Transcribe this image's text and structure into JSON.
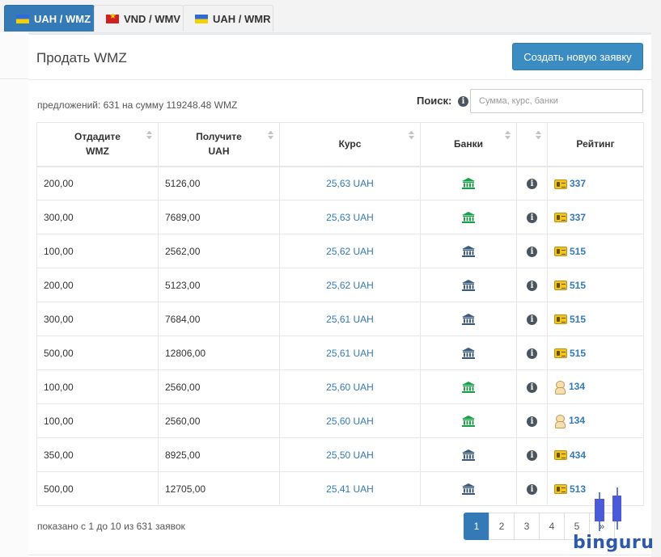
{
  "tabs": [
    {
      "label": "UAH / WMZ",
      "flag": "ua",
      "active": true
    },
    {
      "label": "VND / WMV",
      "flag": "vn",
      "active": false
    },
    {
      "label": "UAH / WMR",
      "flag": "ua",
      "active": false
    }
  ],
  "panel": {
    "title": "Продать WMZ",
    "create_button": "Создать новую заявку",
    "summary": "предложений: 631 на сумму 119248.48 WMZ",
    "search_label": "Поиск:",
    "search_placeholder": "Сумма, курс, банки",
    "search_value": ""
  },
  "table": {
    "headers": {
      "give_line1": "Отдадите",
      "give_line2": "WMZ",
      "receive_line1": "Получите",
      "receive_line2": "UAH",
      "rate": "Курс",
      "banks": "Банки",
      "rating": "Рейтинг"
    },
    "rows": [
      {
        "give": "200,00",
        "receive": "5126,00",
        "rate": "25,63 UAH",
        "bank_color": "#1e9e4a",
        "badge": "gold",
        "rating": "337"
      },
      {
        "give": "300,00",
        "receive": "7689,00",
        "rate": "25,63 UAH",
        "bank_color": "#1e9e4a",
        "badge": "gold",
        "rating": "337"
      },
      {
        "give": "100,00",
        "receive": "2562,00",
        "rate": "25,62 UAH",
        "bank_color": "#3c5a7a",
        "badge": "gold",
        "rating": "515"
      },
      {
        "give": "200,00",
        "receive": "5123,00",
        "rate": "25,62 UAH",
        "bank_color": "#3c5a7a",
        "badge": "gold",
        "rating": "515"
      },
      {
        "give": "300,00",
        "receive": "7684,00",
        "rate": "25,61 UAH",
        "bank_color": "#3c5a7a",
        "badge": "gold",
        "rating": "515"
      },
      {
        "give": "500,00",
        "receive": "12806,00",
        "rate": "25,61 UAH",
        "bank_color": "#3c5a7a",
        "badge": "gold",
        "rating": "515"
      },
      {
        "give": "100,00",
        "receive": "2560,00",
        "rate": "25,60 UAH",
        "bank_color": "#1e9e4a",
        "badge": "person",
        "rating": "134"
      },
      {
        "give": "100,00",
        "receive": "2560,00",
        "rate": "25,60 UAH",
        "bank_color": "#1e9e4a",
        "badge": "person",
        "rating": "134"
      },
      {
        "give": "350,00",
        "receive": "8925,00",
        "rate": "25,50 UAH",
        "bank_color": "#3c5a7a",
        "badge": "gold",
        "rating": "434"
      },
      {
        "give": "500,00",
        "receive": "12705,00",
        "rate": "25,41 UAH",
        "bank_color": "#3c5a7a",
        "badge": "gold",
        "rating": "513"
      }
    ]
  },
  "footer": {
    "info": "показано с 1 до 10 из 631 заявок",
    "pages": [
      "1",
      "2",
      "3",
      "4",
      "5",
      "»"
    ],
    "active_page": "1"
  },
  "watermark": "binguru",
  "colors": {
    "accent": "#337ab7",
    "button": "#3c8cc4",
    "bank_green": "#1e9e4a",
    "bank_blue": "#3c5a7a"
  }
}
